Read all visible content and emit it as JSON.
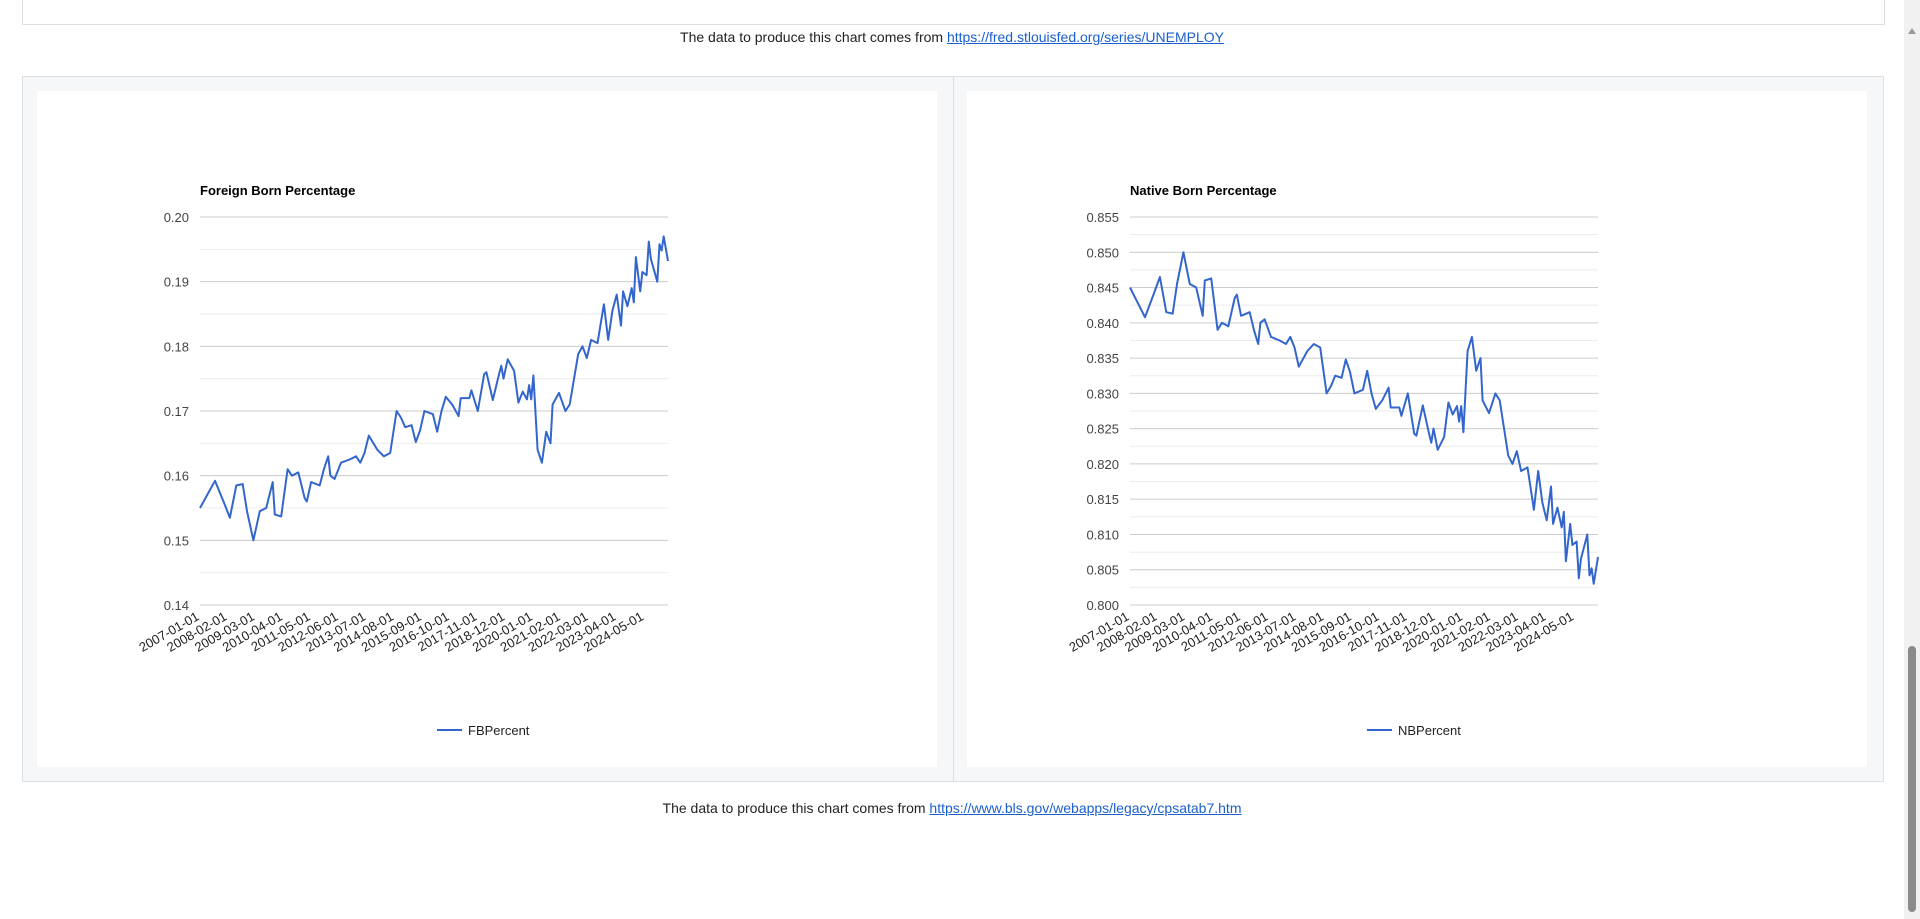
{
  "source_top": {
    "text": "The data to produce this chart comes from ",
    "link": "https://fred.stlouisfed.org/series/UNEMPLOY"
  },
  "source_bottom": {
    "text": "The data to produce this chart comes from ",
    "link": "https://www.bls.gov/webapps/legacy/cpsatab7.htm"
  },
  "colors": {
    "line": "#3366cc",
    "grid": "#cccccc",
    "minor_grid": "#ebebeb"
  },
  "chart_data": [
    {
      "type": "line",
      "title": "Foreign Born Percentage",
      "xlabel": "",
      "ylabel": "",
      "x_unit": "months since 2007-01",
      "x_range": [
        0,
        219
      ],
      "x_tick_labels": [
        "2007-01-01",
        "2008-02-01",
        "2009-03-01",
        "2010-04-01",
        "2011-05-01",
        "2012-06-01",
        "2013-07-01",
        "2014-08-01",
        "2015-09-01",
        "2016-10-01",
        "2017-11-01",
        "2018-12-01",
        "2020-01-01",
        "2021-02-01",
        "2022-03-01",
        "2023-04-01",
        "2024-05-01"
      ],
      "x_tick_step_months": 13,
      "ylim": [
        0.14,
        0.2
      ],
      "y_ticks": [
        "0.14",
        "0.15",
        "0.16",
        "0.17",
        "0.18",
        "0.19",
        "0.20"
      ],
      "grid": true,
      "legend": {
        "position": "bottom",
        "entries": [
          "FBPercent"
        ]
      },
      "series": [
        {
          "name": "FBPercent",
          "x": [
            0,
            3,
            7,
            11,
            14,
            17,
            20,
            22,
            25,
            28,
            31,
            34,
            35,
            38,
            41,
            43,
            46,
            49,
            50,
            52,
            56,
            58,
            60,
            61,
            63,
            66,
            70,
            73,
            75,
            77,
            79,
            83,
            86,
            89,
            92,
            94,
            96,
            99,
            101,
            103,
            105,
            109,
            111,
            113,
            115,
            118,
            121,
            122,
            126,
            127,
            130,
            133,
            134,
            137,
            140,
            141,
            142,
            144,
            147,
            149,
            151,
            153,
            154,
            155,
            156,
            158,
            160,
            162,
            164,
            165,
            168,
            171,
            173,
            177,
            179,
            181,
            183,
            186,
            189,
            191,
            193,
            195,
            197,
            198,
            200,
            202,
            203,
            204,
            206,
            207,
            209,
            210,
            211,
            214,
            215,
            216,
            217,
            219
          ],
          "values": [
            0.155,
            0.1568,
            0.1592,
            0.156,
            0.1535,
            0.1585,
            0.1587,
            0.1545,
            0.15,
            0.1545,
            0.155,
            0.159,
            0.154,
            0.1537,
            0.161,
            0.16,
            0.1605,
            0.1565,
            0.156,
            0.159,
            0.1585,
            0.161,
            0.163,
            0.16,
            0.1595,
            0.162,
            0.1625,
            0.163,
            0.162,
            0.1635,
            0.1662,
            0.164,
            0.163,
            0.1635,
            0.17,
            0.169,
            0.1675,
            0.1678,
            0.1652,
            0.167,
            0.17,
            0.1695,
            0.1668,
            0.17,
            0.1722,
            0.171,
            0.1692,
            0.172,
            0.172,
            0.1732,
            0.17,
            0.1757,
            0.176,
            0.1717,
            0.1758,
            0.177,
            0.175,
            0.178,
            0.1762,
            0.1713,
            0.173,
            0.1718,
            0.174,
            0.1718,
            0.1755,
            0.164,
            0.162,
            0.1668,
            0.165,
            0.171,
            0.1728,
            0.17,
            0.171,
            0.1788,
            0.18,
            0.1782,
            0.181,
            0.1805,
            0.1865,
            0.181,
            0.1855,
            0.188,
            0.1832,
            0.1885,
            0.1862,
            0.189,
            0.1868,
            0.1938,
            0.1885,
            0.1915,
            0.191,
            0.1962,
            0.1935,
            0.19,
            0.1958,
            0.1948,
            0.197,
            0.1932
          ]
        }
      ]
    },
    {
      "type": "line",
      "title": "Native Born Percentage",
      "xlabel": "",
      "ylabel": "",
      "x_unit": "months since 2007-01",
      "x_range": [
        0,
        219
      ],
      "x_tick_labels": [
        "2007-01-01",
        "2008-02-01",
        "2009-03-01",
        "2010-04-01",
        "2011-05-01",
        "2012-06-01",
        "2013-07-01",
        "2014-08-01",
        "2015-09-01",
        "2016-10-01",
        "2017-11-01",
        "2018-12-01",
        "2020-01-01",
        "2021-02-01",
        "2022-03-01",
        "2023-04-01",
        "2024-05-01"
      ],
      "x_tick_step_months": 13,
      "ylim": [
        0.8,
        0.855
      ],
      "y_ticks": [
        "0.800",
        "0.805",
        "0.810",
        "0.815",
        "0.820",
        "0.825",
        "0.830",
        "0.835",
        "0.840",
        "0.845",
        "0.850",
        "0.855"
      ],
      "grid": true,
      "legend": {
        "position": "bottom",
        "entries": [
          "NBPercent"
        ]
      },
      "series": [
        {
          "name": "NBPercent",
          "x": [
            0,
            3,
            7,
            11,
            14,
            17,
            20,
            22,
            25,
            28,
            31,
            34,
            35,
            38,
            41,
            43,
            46,
            49,
            50,
            52,
            56,
            58,
            60,
            61,
            63,
            66,
            70,
            73,
            75,
            77,
            79,
            83,
            86,
            89,
            92,
            94,
            96,
            99,
            101,
            103,
            105,
            109,
            111,
            113,
            115,
            118,
            121,
            122,
            126,
            127,
            130,
            133,
            134,
            137,
            140,
            141,
            142,
            144,
            147,
            149,
            151,
            153,
            154,
            155,
            156,
            158,
            160,
            162,
            164,
            165,
            168,
            171,
            173,
            177,
            179,
            181,
            183,
            186,
            189,
            191,
            193,
            195,
            197,
            198,
            200,
            202,
            203,
            204,
            206,
            207,
            209,
            210,
            211,
            214,
            215,
            216,
            217,
            219
          ],
          "values": [
            0.845,
            0.8432,
            0.8408,
            0.844,
            0.8465,
            0.8415,
            0.8413,
            0.8455,
            0.85,
            0.8455,
            0.845,
            0.841,
            0.846,
            0.8463,
            0.839,
            0.84,
            0.8395,
            0.8435,
            0.844,
            0.841,
            0.8415,
            0.839,
            0.837,
            0.84,
            0.8405,
            0.838,
            0.8375,
            0.837,
            0.838,
            0.8365,
            0.8338,
            0.836,
            0.837,
            0.8365,
            0.83,
            0.831,
            0.8325,
            0.8322,
            0.8348,
            0.833,
            0.83,
            0.8305,
            0.8332,
            0.83,
            0.8278,
            0.829,
            0.8308,
            0.828,
            0.828,
            0.8268,
            0.83,
            0.8243,
            0.824,
            0.8283,
            0.8242,
            0.823,
            0.825,
            0.822,
            0.8238,
            0.8287,
            0.827,
            0.8282,
            0.826,
            0.8282,
            0.8245,
            0.836,
            0.838,
            0.8332,
            0.835,
            0.829,
            0.8272,
            0.83,
            0.829,
            0.8212,
            0.82,
            0.8218,
            0.819,
            0.8195,
            0.8135,
            0.819,
            0.8145,
            0.812,
            0.8168,
            0.8115,
            0.8138,
            0.811,
            0.8132,
            0.8062,
            0.8115,
            0.8085,
            0.809,
            0.8038,
            0.8065,
            0.81,
            0.8042,
            0.8052,
            0.803,
            0.8068
          ]
        }
      ]
    }
  ]
}
